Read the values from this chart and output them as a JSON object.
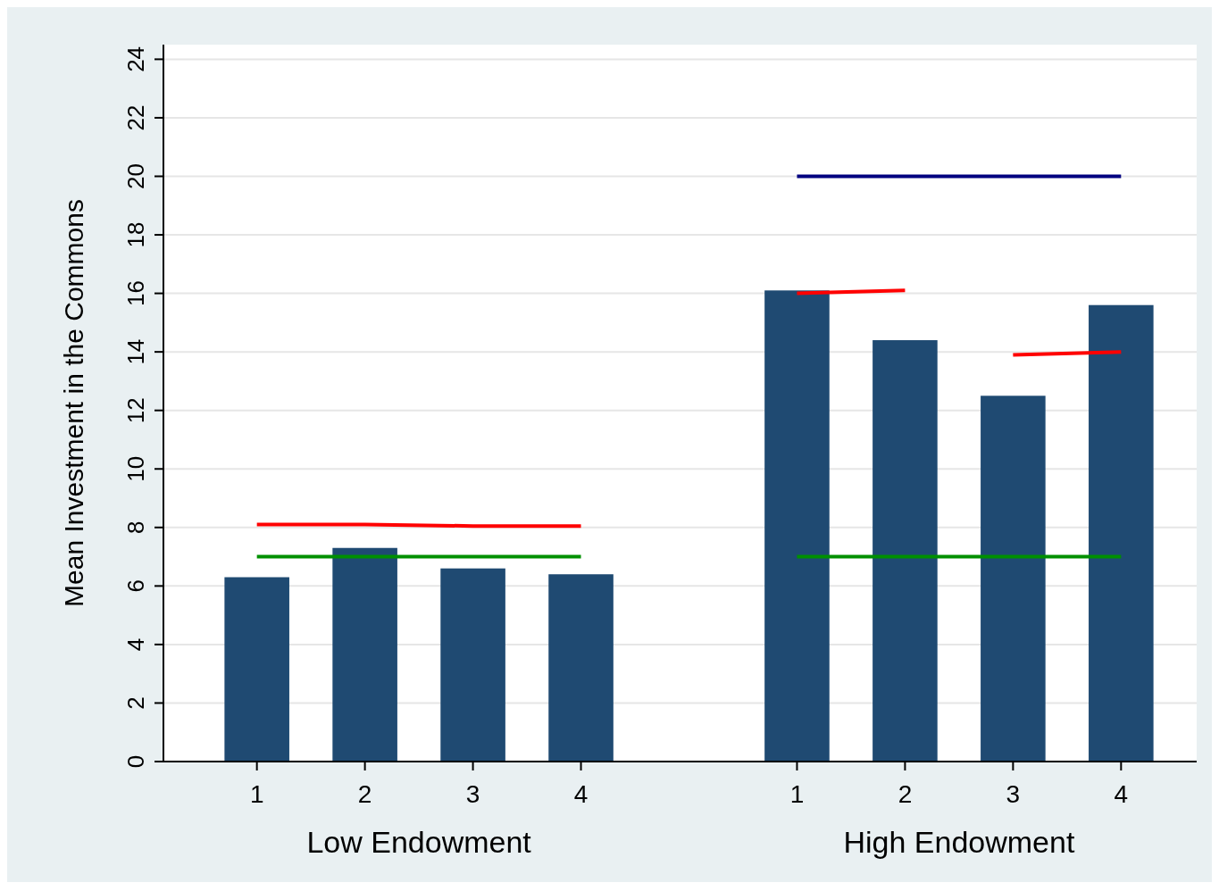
{
  "chart_data": {
    "type": "bar",
    "ylabel": "Mean Investment in the Commons",
    "categories": [
      "1",
      "2",
      "3",
      "4",
      null,
      "1",
      "2",
      "3",
      "4"
    ],
    "series": [
      {
        "color": "#1f4a72",
        "values": [
          6.3,
          7.3,
          6.6,
          6.4,
          null,
          16.1,
          14.4,
          12.5,
          15.6
        ]
      },
      {
        "type": "line",
        "color": "#ff0000",
        "values": [
          8.1,
          8.1,
          8.05,
          8.05,
          null,
          null,
          null,
          null,
          null
        ]
      },
      {
        "type": "line",
        "color": "#ff0000",
        "values": [
          null,
          null,
          null,
          null,
          null,
          16.0,
          16.1,
          null,
          null
        ]
      },
      {
        "type": "line",
        "color": "#ff0000",
        "values": [
          null,
          null,
          null,
          null,
          null,
          null,
          null,
          13.9,
          14.0
        ]
      },
      {
        "type": "line",
        "color": "#009000",
        "values": [
          7,
          7,
          7,
          7,
          null,
          7,
          7,
          7,
          7
        ]
      },
      {
        "type": "line",
        "color": "#000080",
        "values": [
          null,
          null,
          null,
          null,
          null,
          20,
          20,
          20,
          20
        ]
      }
    ],
    "ylim": [
      0,
      24.5
    ],
    "yticks": [
      0,
      2,
      4,
      6,
      8,
      10,
      12,
      14,
      16,
      18,
      20,
      22,
      24
    ],
    "grid": "y",
    "annotations": [
      "Low Endowment",
      "High Endowment"
    ]
  }
}
